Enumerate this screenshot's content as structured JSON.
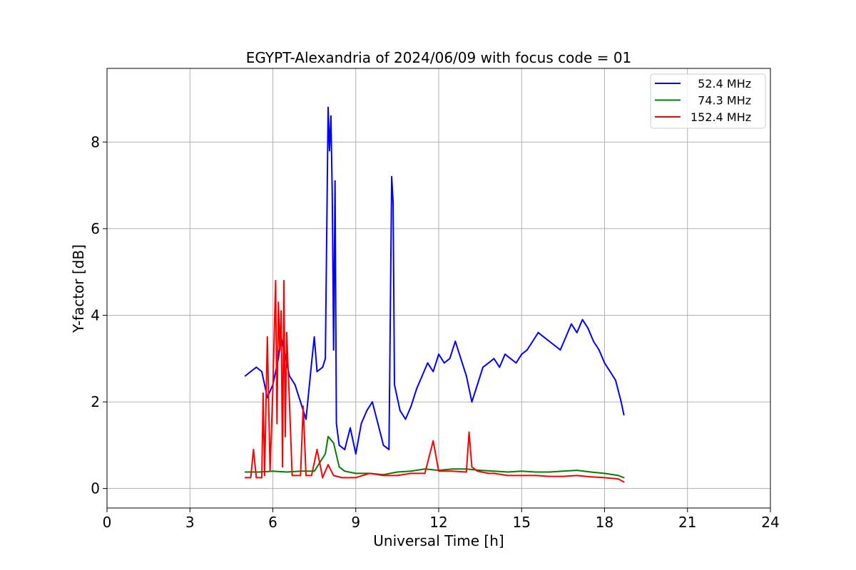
{
  "chart_data": {
    "type": "line",
    "title": "EGYPT-Alexandria of 2024/06/09 with focus code = 01",
    "xlabel": "Universal Time [h]",
    "ylabel": "Y-factor [dB]",
    "xlim": [
      0,
      24
    ],
    "ylim": [
      -0.45,
      9.7
    ],
    "xticks": [
      0,
      3,
      6,
      9,
      12,
      15,
      18,
      21,
      24
    ],
    "yticks": [
      0,
      2,
      4,
      6,
      8
    ],
    "grid": true,
    "legend_position": "top-right",
    "series": [
      {
        "name": "  52.4 MHz",
        "color": "#0000ff",
        "x": [
          5.0,
          5.2,
          5.4,
          5.6,
          5.8,
          6.0,
          6.2,
          6.3,
          6.4,
          6.6,
          6.8,
          7.0,
          7.2,
          7.4,
          7.5,
          7.6,
          7.8,
          7.9,
          8.0,
          8.05,
          8.1,
          8.15,
          8.2,
          8.25,
          8.3,
          8.4,
          8.6,
          8.8,
          9.0,
          9.2,
          9.4,
          9.6,
          9.8,
          10.0,
          10.2,
          10.3,
          10.35,
          10.4,
          10.6,
          10.8,
          11.0,
          11.2,
          11.4,
          11.6,
          11.8,
          12.0,
          12.2,
          12.4,
          12.6,
          12.8,
          13.0,
          13.2,
          13.4,
          13.6,
          13.8,
          14.0,
          14.2,
          14.4,
          14.6,
          14.8,
          15.0,
          15.2,
          15.4,
          15.6,
          15.8,
          16.0,
          16.2,
          16.4,
          16.6,
          16.8,
          17.0,
          17.2,
          17.4,
          17.6,
          17.8,
          18.0,
          18.2,
          18.4,
          18.6,
          18.7
        ],
        "y": [
          2.6,
          2.7,
          2.8,
          2.7,
          2.1,
          2.4,
          3.0,
          3.5,
          3.2,
          2.6,
          2.4,
          2.0,
          1.6,
          2.9,
          3.5,
          2.7,
          2.8,
          3.0,
          8.8,
          7.8,
          8.6,
          6.8,
          3.2,
          7.1,
          1.5,
          1.0,
          0.9,
          1.4,
          0.8,
          1.5,
          1.8,
          2.0,
          1.5,
          1.0,
          0.9,
          7.2,
          6.6,
          2.4,
          1.8,
          1.6,
          1.9,
          2.3,
          2.6,
          2.9,
          2.7,
          3.1,
          2.9,
          3.0,
          3.4,
          3.0,
          2.6,
          2.0,
          2.4,
          2.8,
          2.9,
          3.0,
          2.8,
          3.1,
          3.0,
          2.9,
          3.1,
          3.2,
          3.4,
          3.6,
          3.5,
          3.4,
          3.3,
          3.2,
          3.5,
          3.8,
          3.6,
          3.9,
          3.7,
          3.4,
          3.2,
          2.9,
          2.7,
          2.5,
          2.0,
          1.7
        ]
      },
      {
        "name": "  74.3 MHz",
        "color": "#008000",
        "x": [
          5.0,
          5.5,
          6.0,
          6.5,
          7.0,
          7.5,
          7.9,
          8.0,
          8.2,
          8.4,
          8.6,
          9.0,
          9.5,
          10.0,
          10.5,
          11.0,
          11.5,
          12.0,
          12.5,
          13.0,
          13.5,
          14.0,
          14.5,
          15.0,
          15.5,
          16.0,
          16.5,
          17.0,
          17.5,
          18.0,
          18.5,
          18.7
        ],
        "y": [
          0.38,
          0.38,
          0.4,
          0.38,
          0.4,
          0.4,
          0.8,
          1.2,
          1.05,
          0.5,
          0.4,
          0.35,
          0.35,
          0.32,
          0.38,
          0.4,
          0.45,
          0.42,
          0.45,
          0.45,
          0.42,
          0.4,
          0.38,
          0.4,
          0.38,
          0.38,
          0.4,
          0.42,
          0.38,
          0.35,
          0.3,
          0.25
        ]
      },
      {
        "name": "152.4 MHz",
        "color": "#ff0000",
        "x": [
          5.0,
          5.2,
          5.3,
          5.4,
          5.6,
          5.65,
          5.7,
          5.8,
          5.9,
          6.0,
          6.1,
          6.15,
          6.2,
          6.25,
          6.3,
          6.35,
          6.4,
          6.45,
          6.5,
          6.6,
          6.7,
          6.8,
          7.0,
          7.1,
          7.2,
          7.4,
          7.6,
          7.8,
          8.0,
          8.2,
          8.5,
          9.0,
          9.5,
          10.0,
          10.5,
          11.0,
          11.5,
          11.8,
          12.0,
          12.5,
          13.0,
          13.1,
          13.2,
          13.4,
          13.8,
          14.0,
          14.5,
          15.0,
          15.5,
          16.0,
          16.5,
          17.0,
          17.5,
          18.0,
          18.5,
          18.7
        ],
        "y": [
          0.25,
          0.25,
          0.9,
          0.25,
          0.25,
          2.2,
          0.3,
          3.5,
          0.4,
          2.3,
          4.8,
          1.5,
          4.3,
          3.2,
          4.1,
          0.5,
          4.8,
          1.2,
          3.6,
          2.0,
          0.3,
          0.3,
          0.3,
          1.9,
          0.3,
          0.3,
          0.9,
          0.25,
          0.55,
          0.3,
          0.25,
          0.25,
          0.35,
          0.3,
          0.3,
          0.35,
          0.35,
          1.1,
          0.4,
          0.4,
          0.38,
          1.3,
          0.5,
          0.4,
          0.35,
          0.35,
          0.3,
          0.3,
          0.3,
          0.28,
          0.28,
          0.3,
          0.27,
          0.25,
          0.22,
          0.15
        ]
      }
    ]
  }
}
